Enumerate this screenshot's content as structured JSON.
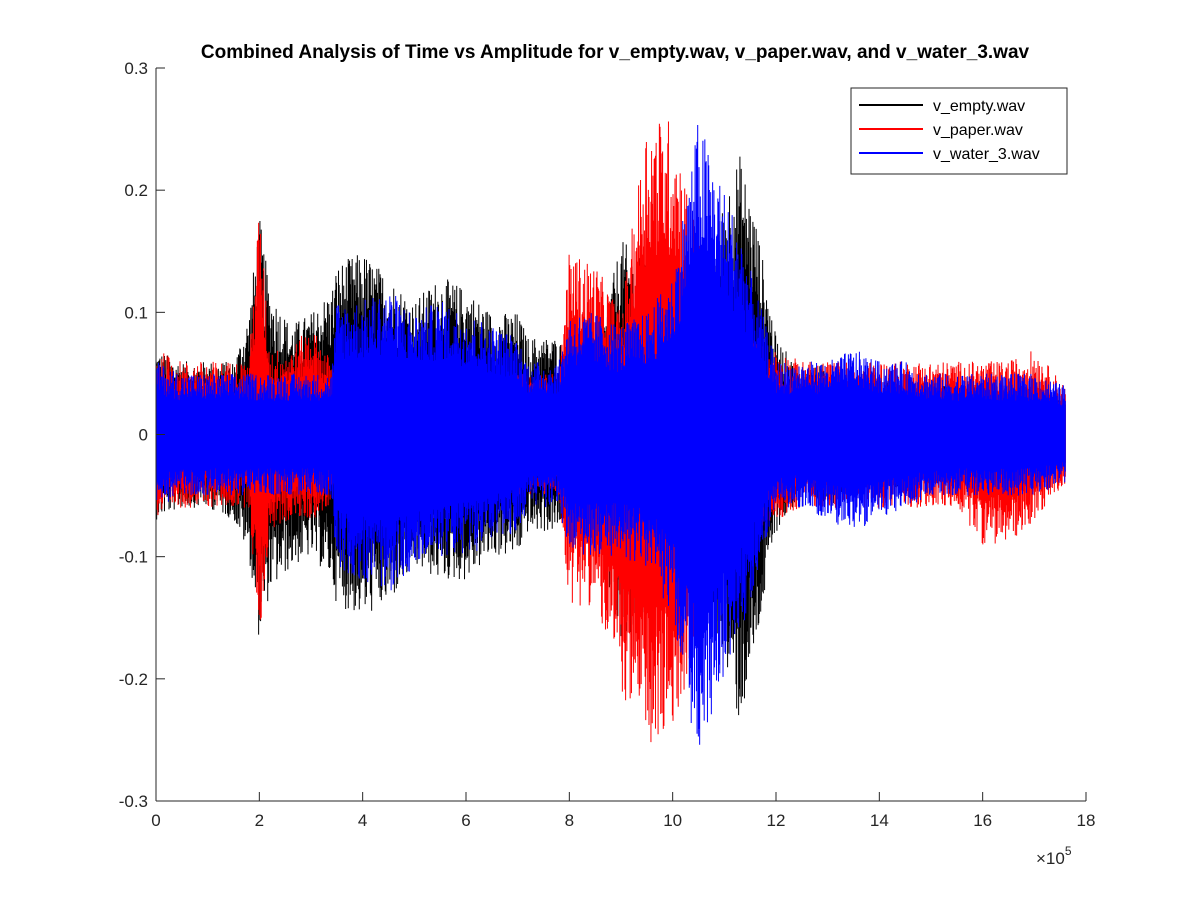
{
  "chart_data": {
    "type": "line",
    "title": "Combined Analysis of Time vs Amplitude for v_empty.wav, v_paper.wav, and v_water_3.wav",
    "xlabel": "",
    "ylabel": "",
    "xlim": [
      0,
      1800000
    ],
    "ylim": [
      -0.3,
      0.3
    ],
    "x_multiplier_base": "×10",
    "x_multiplier_exp": "5",
    "x_ticks": [
      {
        "value": 0,
        "label": "0"
      },
      {
        "value": 200000,
        "label": "2"
      },
      {
        "value": 400000,
        "label": "4"
      },
      {
        "value": 600000,
        "label": "6"
      },
      {
        "value": 800000,
        "label": "8"
      },
      {
        "value": 1000000,
        "label": "10"
      },
      {
        "value": 1200000,
        "label": "12"
      },
      {
        "value": 1400000,
        "label": "14"
      },
      {
        "value": 1600000,
        "label": "16"
      },
      {
        "value": 1800000,
        "label": "18"
      }
    ],
    "y_ticks": [
      {
        "value": 0.3,
        "label": "0.3"
      },
      {
        "value": 0.2,
        "label": "0.2"
      },
      {
        "value": 0.1,
        "label": "0.1"
      },
      {
        "value": 0,
        "label": "0"
      },
      {
        "value": -0.1,
        "label": "-0.1"
      },
      {
        "value": -0.2,
        "label": "-0.2"
      },
      {
        "value": -0.3,
        "label": "-0.3"
      }
    ],
    "grid": false,
    "legend_position": "top-right",
    "series": [
      {
        "name": "v_empty.wav",
        "color": "#000000",
        "envelope": {
          "x": [
            0,
            50000,
            100000,
            150000,
            180000,
            200000,
            220000,
            260000,
            300000,
            340000,
            350000,
            400000,
            450000,
            500000,
            550000,
            600000,
            650000,
            700000,
            720000,
            780000,
            800000,
            850000,
            900000,
            950000,
            1000000,
            1050000,
            1100000,
            1130000,
            1160000,
            1200000,
            1250000,
            1300000,
            1350000,
            1400000,
            1450000,
            1500000,
            1550000,
            1600000,
            1650000,
            1700000,
            1760000
          ],
          "upper": [
            0.07,
            0.06,
            0.06,
            0.06,
            0.1,
            0.18,
            0.12,
            0.09,
            0.1,
            0.12,
            0.14,
            0.15,
            0.13,
            0.11,
            0.13,
            0.12,
            0.1,
            0.1,
            0.08,
            0.08,
            0.06,
            0.06,
            0.16,
            0.14,
            0.12,
            0.08,
            0.2,
            0.23,
            0.18,
            0.08,
            0.05,
            0.06,
            0.05,
            0.05,
            0.04,
            0.04,
            0.04,
            0.04,
            0.04,
            0.03,
            0.03
          ],
          "lower": [
            -0.07,
            -0.06,
            -0.06,
            -0.07,
            -0.1,
            -0.17,
            -0.13,
            -0.11,
            -0.1,
            -0.12,
            -0.14,
            -0.15,
            -0.14,
            -0.11,
            -0.12,
            -0.12,
            -0.1,
            -0.1,
            -0.08,
            -0.08,
            -0.06,
            -0.07,
            -0.18,
            -0.16,
            -0.14,
            -0.1,
            -0.19,
            -0.24,
            -0.18,
            -0.08,
            -0.05,
            -0.06,
            -0.05,
            -0.05,
            -0.04,
            -0.04,
            -0.04,
            -0.04,
            -0.04,
            -0.03,
            -0.03
          ]
        }
      },
      {
        "name": "v_paper.wav",
        "color": "#ff0000",
        "envelope": {
          "x": [
            0,
            50000,
            100000,
            150000,
            180000,
            200000,
            220000,
            260000,
            300000,
            340000,
            350000,
            400000,
            450000,
            500000,
            550000,
            600000,
            650000,
            700000,
            720000,
            780000,
            800000,
            850000,
            900000,
            950000,
            1000000,
            1050000,
            1100000,
            1130000,
            1160000,
            1200000,
            1250000,
            1300000,
            1350000,
            1400000,
            1450000,
            1500000,
            1550000,
            1600000,
            1650000,
            1700000,
            1760000
          ],
          "upper": [
            0.07,
            0.06,
            0.06,
            0.06,
            0.06,
            0.19,
            0.07,
            0.07,
            0.09,
            0.06,
            0.06,
            0.06,
            0.06,
            0.05,
            0.05,
            0.05,
            0.05,
            0.05,
            0.05,
            0.05,
            0.15,
            0.14,
            0.1,
            0.26,
            0.26,
            0.16,
            0.1,
            0.08,
            0.08,
            0.07,
            0.06,
            0.06,
            0.06,
            0.06,
            0.06,
            0.06,
            0.06,
            0.06,
            0.06,
            0.07,
            0.04
          ],
          "lower": [
            -0.07,
            -0.06,
            -0.06,
            -0.06,
            -0.06,
            -0.17,
            -0.08,
            -0.07,
            -0.07,
            -0.06,
            -0.06,
            -0.06,
            -0.06,
            -0.05,
            -0.05,
            -0.05,
            -0.05,
            -0.05,
            -0.05,
            -0.05,
            -0.14,
            -0.14,
            -0.21,
            -0.26,
            -0.25,
            -0.16,
            -0.1,
            -0.08,
            -0.08,
            -0.07,
            -0.06,
            -0.06,
            -0.06,
            -0.06,
            -0.06,
            -0.06,
            -0.06,
            -0.09,
            -0.09,
            -0.07,
            -0.04
          ]
        }
      },
      {
        "name": "v_water_3.wav",
        "color": "#0000ff",
        "envelope": {
          "x": [
            0,
            50000,
            100000,
            150000,
            180000,
            200000,
            220000,
            260000,
            300000,
            340000,
            350000,
            400000,
            450000,
            500000,
            550000,
            600000,
            650000,
            700000,
            720000,
            780000,
            800000,
            850000,
            900000,
            950000,
            1000000,
            1050000,
            1100000,
            1130000,
            1160000,
            1200000,
            1250000,
            1300000,
            1350000,
            1400000,
            1450000,
            1500000,
            1550000,
            1600000,
            1650000,
            1700000,
            1760000
          ],
          "upper": [
            0.06,
            0.05,
            0.05,
            0.05,
            0.05,
            0.05,
            0.05,
            0.05,
            0.05,
            0.05,
            0.11,
            0.11,
            0.12,
            0.1,
            0.11,
            0.1,
            0.09,
            0.08,
            0.06,
            0.06,
            0.1,
            0.1,
            0.09,
            0.1,
            0.13,
            0.26,
            0.2,
            0.17,
            0.12,
            0.06,
            0.06,
            0.06,
            0.07,
            0.06,
            0.06,
            0.05,
            0.05,
            0.05,
            0.05,
            0.05,
            0.04
          ],
          "lower": [
            -0.06,
            -0.05,
            -0.05,
            -0.05,
            -0.05,
            -0.05,
            -0.05,
            -0.05,
            -0.05,
            -0.05,
            -0.11,
            -0.12,
            -0.13,
            -0.11,
            -0.1,
            -0.1,
            -0.09,
            -0.08,
            -0.06,
            -0.06,
            -0.1,
            -0.1,
            -0.1,
            -0.11,
            -0.15,
            -0.27,
            -0.2,
            -0.17,
            -0.12,
            -0.06,
            -0.06,
            -0.07,
            -0.08,
            -0.07,
            -0.06,
            -0.05,
            -0.05,
            -0.05,
            -0.05,
            -0.05,
            -0.04
          ]
        }
      }
    ]
  }
}
